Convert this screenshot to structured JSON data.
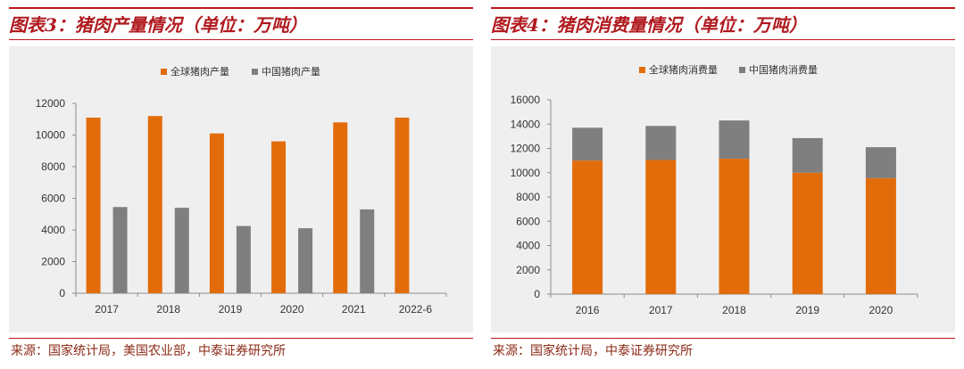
{
  "left_panel": {
    "title": "图表3：猪肉产量情况（单位：万吨）",
    "source": "来源：国家统计局，美国农业部，中泰证券研究所"
  },
  "right_panel": {
    "title": "图表4：猪肉消费量情况（单位：万吨）",
    "source": "来源：国家统计局，中泰证券研究所"
  },
  "colors": {
    "global": "#e36c0a",
    "china": "#7f7f7f",
    "rule": "#c0181e",
    "title": "#b01a1f"
  },
  "chart_data": [
    {
      "type": "bar",
      "mode": "grouped",
      "title": "图表3：猪肉产量情况（单位：万吨）",
      "xlabel": "",
      "ylabel": "万吨",
      "categories": [
        "2017",
        "2018",
        "2019",
        "2020",
        "2021",
        "2022-6"
      ],
      "series": [
        {
          "name": "全球猪肉产量",
          "color": "#e36c0a",
          "values": [
            11100,
            11200,
            10100,
            9600,
            10800,
            11100
          ]
        },
        {
          "name": "中国猪肉产量",
          "color": "#7f7f7f",
          "values": [
            5450,
            5400,
            4250,
            4110,
            5300,
            null
          ]
        }
      ],
      "ylim": [
        0,
        12000
      ],
      "yticks": [
        0,
        2000,
        4000,
        6000,
        8000,
        10000,
        12000
      ],
      "legend": "top-center",
      "grid": false
    },
    {
      "type": "bar",
      "mode": "stacked",
      "title": "图表4：猪肉消费量情况（单位：万吨）",
      "xlabel": "",
      "ylabel": "万吨",
      "categories": [
        "2016",
        "2017",
        "2018",
        "2019",
        "2020"
      ],
      "series": [
        {
          "name": "全球猪肉消费量",
          "color": "#e36c0a",
          "values": [
            11000,
            11050,
            11150,
            10000,
            9550
          ]
        },
        {
          "name": "中国猪肉消费量",
          "color": "#7f7f7f",
          "values": [
            2700,
            2800,
            3150,
            2850,
            2550
          ]
        }
      ],
      "ylim": [
        0,
        16000
      ],
      "yticks": [
        0,
        2000,
        4000,
        6000,
        8000,
        10000,
        12000,
        14000,
        16000
      ],
      "legend": "top-center",
      "grid": false
    }
  ]
}
